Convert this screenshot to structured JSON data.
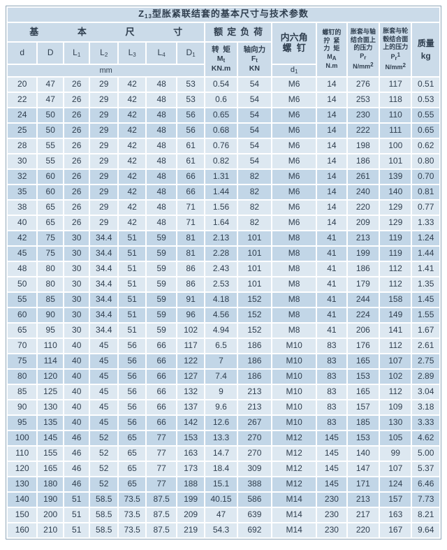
{
  "colors": {
    "header_bg": "#cbdbe9",
    "row_light_bg": "#dde8f1",
    "row_dark_bg": "#c2d6e7",
    "text": "#2f3e4e",
    "grid": "#ffffff",
    "outer_border": "#8fa6b8"
  },
  "table": {
    "title_html": "Z<sub>13</sub>型胀紧联结套的基本尺寸与技术参数",
    "header": {
      "basic_dims_label": "基 本 尺 寸",
      "rated_load_label": "额定负荷",
      "hex_screw_label_html": "内六角<br>螺&nbsp;&nbsp;钉",
      "torque_label_html": "转&nbsp;&nbsp;矩<br>M<sub>t</sub><br>KN.m",
      "axial_force_label_html": "轴向力<br>F<sub>t</sub><br>KN",
      "screw_torque_label_html": "螺钉的<br>拧&nbsp;&nbsp;紧<br>力&nbsp;&nbsp;矩<br>M<sub>A</sub><br>N.m",
      "shaft_pressure_label_html": "胀套与轴<br>结合面上<br>的压力<br>P<sub>r</sub><br>N/mm<sup>2</sup>",
      "hub_pressure_label_html": "胀套与轮<br>毂结合面<br>上的压力<br>P<sub>r</sub><sup>1</sup><br>N/mm<sup>2</sup>",
      "mass_label_html": "质量<br>kg",
      "dim_cols_html": [
        "d",
        "D",
        "L<sub>1</sub>",
        "L<sub>2</sub>",
        "L<sub>3</sub>",
        "L<sub>4</sub>",
        "D<sub>1</sub>"
      ],
      "mm_label": "mm",
      "d1_label_html": "d<sub>1</sub>"
    },
    "rows": [
      [
        "20",
        "47",
        "26",
        "29",
        "42",
        "48",
        "53",
        "0.54",
        "54",
        "M6",
        "14",
        "276",
        "117",
        "0.51"
      ],
      [
        "22",
        "47",
        "26",
        "29",
        "42",
        "48",
        "53",
        "0.6",
        "54",
        "M6",
        "14",
        "253",
        "118",
        "0.53"
      ],
      [
        "24",
        "50",
        "26",
        "29",
        "42",
        "48",
        "56",
        "0.65",
        "54",
        "M6",
        "14",
        "230",
        "110",
        "0.55"
      ],
      [
        "25",
        "50",
        "26",
        "29",
        "42",
        "48",
        "56",
        "0.68",
        "54",
        "M6",
        "14",
        "222",
        "111",
        "0.65"
      ],
      [
        "28",
        "55",
        "26",
        "29",
        "42",
        "48",
        "61",
        "0.76",
        "54",
        "M6",
        "14",
        "198",
        "100",
        "0.62"
      ],
      [
        "30",
        "55",
        "26",
        "29",
        "42",
        "48",
        "61",
        "0.82",
        "54",
        "M6",
        "14",
        "186",
        "101",
        "0.80"
      ],
      [
        "32",
        "60",
        "26",
        "29",
        "42",
        "48",
        "66",
        "1.31",
        "82",
        "M6",
        "14",
        "261",
        "139",
        "0.70"
      ],
      [
        "35",
        "60",
        "26",
        "29",
        "42",
        "48",
        "66",
        "1.44",
        "82",
        "M6",
        "14",
        "240",
        "140",
        "0.81"
      ],
      [
        "38",
        "65",
        "26",
        "29",
        "42",
        "48",
        "71",
        "1.56",
        "82",
        "M6",
        "14",
        "220",
        "129",
        "0.77"
      ],
      [
        "40",
        "65",
        "26",
        "29",
        "42",
        "48",
        "71",
        "1.64",
        "82",
        "M6",
        "14",
        "209",
        "129",
        "1.33"
      ],
      [
        "42",
        "75",
        "30",
        "34.4",
        "51",
        "59",
        "81",
        "2.13",
        "101",
        "M8",
        "41",
        "213",
        "119",
        "1.24"
      ],
      [
        "45",
        "75",
        "30",
        "34.4",
        "51",
        "59",
        "81",
        "2.28",
        "101",
        "M8",
        "41",
        "199",
        "119",
        "1.44"
      ],
      [
        "48",
        "80",
        "30",
        "34.4",
        "51",
        "59",
        "86",
        "2.43",
        "101",
        "M8",
        "41",
        "186",
        "112",
        "1.41"
      ],
      [
        "50",
        "80",
        "30",
        "34.4",
        "51",
        "59",
        "86",
        "2.53",
        "101",
        "M8",
        "41",
        "179",
        "112",
        "1.35"
      ],
      [
        "55",
        "85",
        "30",
        "34.4",
        "51",
        "59",
        "91",
        "4.18",
        "152",
        "M8",
        "41",
        "244",
        "158",
        "1.45"
      ],
      [
        "60",
        "90",
        "30",
        "34.4",
        "51",
        "59",
        "96",
        "4.56",
        "152",
        "M8",
        "41",
        "224",
        "149",
        "1.55"
      ],
      [
        "65",
        "95",
        "30",
        "34.4",
        "51",
        "59",
        "102",
        "4.94",
        "152",
        "M8",
        "41",
        "206",
        "141",
        "1.67"
      ],
      [
        "70",
        "110",
        "40",
        "45",
        "56",
        "66",
        "117",
        "6.5",
        "186",
        "M10",
        "83",
        "176",
        "112",
        "2.61"
      ],
      [
        "75",
        "114",
        "40",
        "45",
        "56",
        "66",
        "122",
        "7",
        "186",
        "M10",
        "83",
        "165",
        "107",
        "2.75"
      ],
      [
        "80",
        "120",
        "40",
        "45",
        "56",
        "66",
        "127",
        "7.4",
        "186",
        "M10",
        "83",
        "153",
        "102",
        "2.89"
      ],
      [
        "85",
        "125",
        "40",
        "45",
        "56",
        "66",
        "132",
        "9",
        "213",
        "M10",
        "83",
        "165",
        "112",
        "3.04"
      ],
      [
        "90",
        "130",
        "40",
        "45",
        "56",
        "66",
        "137",
        "9.6",
        "213",
        "M10",
        "83",
        "157",
        "109",
        "3.18"
      ],
      [
        "95",
        "135",
        "40",
        "45",
        "56",
        "66",
        "142",
        "12.6",
        "267",
        "M10",
        "83",
        "185",
        "130",
        "3.33"
      ],
      [
        "100",
        "145",
        "46",
        "52",
        "65",
        "77",
        "153",
        "13.3",
        "270",
        "M12",
        "145",
        "153",
        "105",
        "4.62"
      ],
      [
        "110",
        "155",
        "46",
        "52",
        "65",
        "77",
        "163",
        "14.7",
        "270",
        "M12",
        "145",
        "140",
        "99",
        "5.00"
      ],
      [
        "120",
        "165",
        "46",
        "52",
        "65",
        "77",
        "173",
        "18.4",
        "309",
        "M12",
        "145",
        "147",
        "107",
        "5.37"
      ],
      [
        "130",
        "180",
        "46",
        "52",
        "65",
        "77",
        "188",
        "15.1",
        "388",
        "M12",
        "145",
        "171",
        "124",
        "6.46"
      ],
      [
        "140",
        "190",
        "51",
        "58.5",
        "73.5",
        "87.5",
        "199",
        "40.15",
        "586",
        "M14",
        "230",
        "213",
        "157",
        "7.73"
      ],
      [
        "150",
        "200",
        "51",
        "58.5",
        "73.5",
        "87.5",
        "209",
        "47",
        "639",
        "M14",
        "230",
        "217",
        "163",
        "8.21"
      ],
      [
        "160",
        "210",
        "51",
        "58.5",
        "73.5",
        "87.5",
        "219",
        "54.3",
        "692",
        "M14",
        "230",
        "220",
        "167",
        "9.64"
      ]
    ]
  }
}
